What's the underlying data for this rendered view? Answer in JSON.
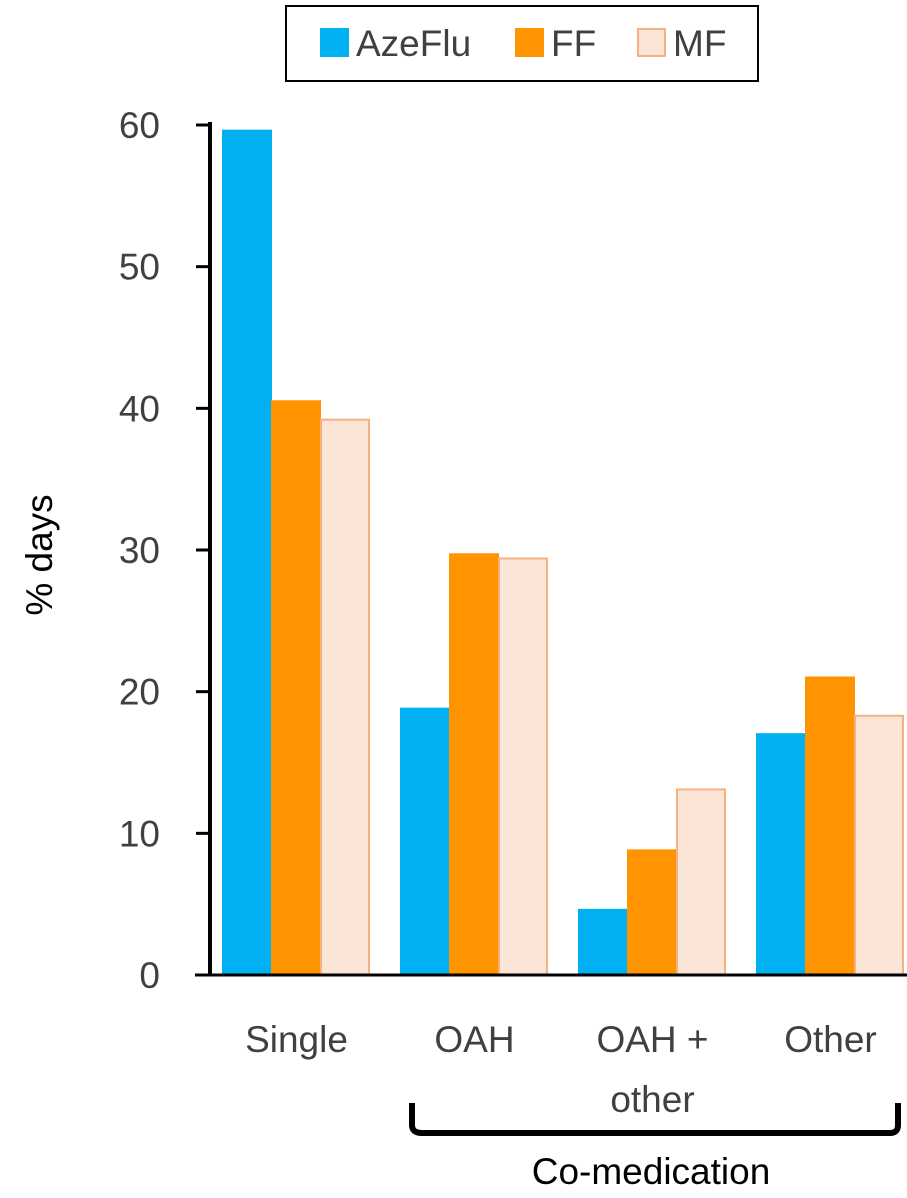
{
  "chart_data": {
    "type": "bar",
    "categories": [
      [
        "Single"
      ],
      [
        "OAH"
      ],
      [
        "OAH +",
        "other"
      ],
      [
        "Other"
      ]
    ],
    "series": [
      {
        "name": "AzeFlu",
        "values": [
          59.6,
          18.8,
          4.6,
          17.0
        ],
        "color": "#00B0F0",
        "stroke": "#00B0F0"
      },
      {
        "name": "FF",
        "values": [
          40.5,
          29.7,
          8.8,
          21.0
        ],
        "color": "#FF9400",
        "stroke": "#FF9400"
      },
      {
        "name": "MF",
        "values": [
          39.2,
          29.4,
          13.1,
          18.3
        ],
        "color": "#FBE5D6",
        "stroke": "#F4B183"
      }
    ],
    "ylabel": "% days",
    "ylim": [
      0,
      60
    ],
    "yticks": [
      "0",
      "10",
      "20",
      "30",
      "40",
      "50",
      "60"
    ],
    "legend_position": "top",
    "group_annotation": "Co-medication",
    "grid": false
  }
}
